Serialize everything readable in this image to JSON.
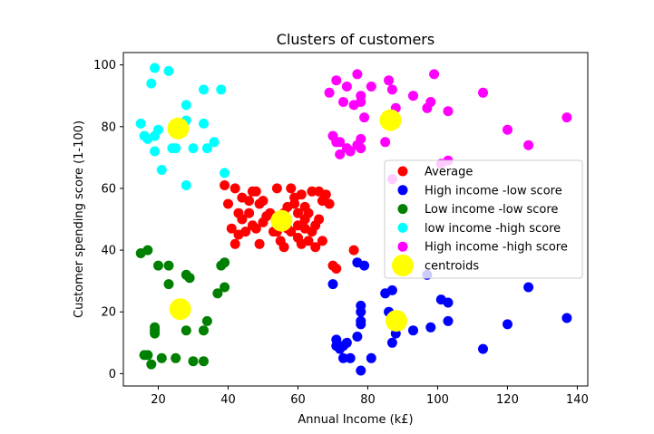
{
  "chart_data": {
    "type": "scatter",
    "title": "Clusters of customers",
    "xlabel": "Annual Income (k£)",
    "ylabel": "Customer spending score (1-100)",
    "xlim": [
      10,
      143
    ],
    "ylim": [
      -4,
      104
    ],
    "xticks": [
      20,
      40,
      60,
      80,
      100,
      120,
      140
    ],
    "yticks": [
      0,
      20,
      40,
      60,
      80,
      100
    ],
    "legend_position": "center-right",
    "series": [
      {
        "name": "Average",
        "color": "#ff0000",
        "marker": "point",
        "points": [
          [
            39,
            61
          ],
          [
            40,
            55
          ],
          [
            41,
            47
          ],
          [
            42,
            60
          ],
          [
            42,
            42
          ],
          [
            43,
            52
          ],
          [
            43,
            45
          ],
          [
            44,
            57
          ],
          [
            44,
            50
          ],
          [
            45,
            46
          ],
          [
            46,
            52
          ],
          [
            46,
            56
          ],
          [
            47,
            59
          ],
          [
            47,
            48
          ],
          [
            48,
            59
          ],
          [
            48,
            47
          ],
          [
            49,
            42
          ],
          [
            49,
            55
          ],
          [
            50,
            49
          ],
          [
            50,
            56
          ],
          [
            51,
            51
          ],
          [
            52,
            52
          ],
          [
            53,
            46
          ],
          [
            54,
            60
          ],
          [
            54,
            50
          ],
          [
            54,
            46
          ],
          [
            55,
            43
          ],
          [
            56,
            52
          ],
          [
            56,
            41
          ],
          [
            57,
            54
          ],
          [
            57,
            47
          ],
          [
            58,
            60
          ],
          [
            58,
            46
          ],
          [
            59,
            57
          ],
          [
            59,
            55
          ],
          [
            60,
            48
          ],
          [
            60,
            44
          ],
          [
            60,
            52
          ],
          [
            61,
            58
          ],
          [
            61,
            42
          ],
          [
            62,
            50
          ],
          [
            62,
            54
          ],
          [
            62,
            47
          ],
          [
            63,
            43
          ],
          [
            63,
            52
          ],
          [
            64,
            59
          ],
          [
            64,
            46
          ],
          [
            65,
            48
          ],
          [
            65,
            41
          ],
          [
            66,
            59
          ],
          [
            66,
            50
          ],
          [
            67,
            56
          ],
          [
            67,
            43
          ],
          [
            68,
            58
          ],
          [
            69,
            55
          ],
          [
            70,
            35
          ],
          [
            71,
            34
          ],
          [
            76,
            40
          ]
        ]
      },
      {
        "name": "High income -low score",
        "color": "#0000ff",
        "marker": "point",
        "points": [
          [
            70,
            29
          ],
          [
            71,
            11
          ],
          [
            71,
            9
          ],
          [
            72,
            8
          ],
          [
            73,
            5
          ],
          [
            73,
            9
          ],
          [
            74,
            10
          ],
          [
            75,
            5
          ],
          [
            77,
            36
          ],
          [
            77,
            12
          ],
          [
            78,
            22
          ],
          [
            78,
            20
          ],
          [
            78,
            17
          ],
          [
            78,
            16
          ],
          [
            78,
            1
          ],
          [
            79,
            35
          ],
          [
            81,
            5
          ],
          [
            85,
            26
          ],
          [
            86,
            20
          ],
          [
            87,
            27
          ],
          [
            87,
            10
          ],
          [
            88,
            13
          ],
          [
            88,
            15
          ],
          [
            93,
            14
          ],
          [
            97,
            32
          ],
          [
            98,
            15
          ],
          [
            101,
            24
          ],
          [
            103,
            17
          ],
          [
            103,
            23
          ],
          [
            113,
            8
          ],
          [
            120,
            16
          ],
          [
            126,
            28
          ],
          [
            137,
            18
          ]
        ]
      },
      {
        "name": "Low income -low score",
        "color": "#008000",
        "marker": "point",
        "points": [
          [
            15,
            39
          ],
          [
            16,
            6
          ],
          [
            17,
            40
          ],
          [
            17,
            6
          ],
          [
            18,
            3
          ],
          [
            19,
            14
          ],
          [
            19,
            15
          ],
          [
            19,
            13
          ],
          [
            20,
            35
          ],
          [
            21,
            5
          ],
          [
            23,
            29
          ],
          [
            23,
            35
          ],
          [
            25,
            5
          ],
          [
            28,
            14
          ],
          [
            28,
            32
          ],
          [
            29,
            31
          ],
          [
            30,
            4
          ],
          [
            33,
            4
          ],
          [
            33,
            14
          ],
          [
            34,
            17
          ],
          [
            37,
            26
          ],
          [
            38,
            35
          ],
          [
            39,
            36
          ],
          [
            39,
            28
          ]
        ]
      },
      {
        "name": "low income -high score",
        "color": "#00ffff",
        "marker": "point",
        "points": [
          [
            15,
            81
          ],
          [
            16,
            77
          ],
          [
            17,
            76
          ],
          [
            18,
            94
          ],
          [
            19,
            72
          ],
          [
            19,
            99
          ],
          [
            19,
            77
          ],
          [
            20,
            79
          ],
          [
            21,
            66
          ],
          [
            23,
            98
          ],
          [
            24,
            73
          ],
          [
            25,
            73
          ],
          [
            27,
            80
          ],
          [
            28,
            82
          ],
          [
            28,
            61
          ],
          [
            28,
            87
          ],
          [
            30,
            73
          ],
          [
            33,
            92
          ],
          [
            33,
            81
          ],
          [
            34,
            73
          ],
          [
            36,
            75
          ],
          [
            38,
            92
          ],
          [
            39,
            65
          ]
        ]
      },
      {
        "name": "High income -high score",
        "color": "#ff00ff",
        "marker": "point",
        "points": [
          [
            69,
            91
          ],
          [
            70,
            77
          ],
          [
            71,
            75
          ],
          [
            71,
            95
          ],
          [
            72,
            71
          ],
          [
            72,
            75
          ],
          [
            73,
            88
          ],
          [
            74,
            73
          ],
          [
            74,
            93
          ],
          [
            75,
            72
          ],
          [
            76,
            87
          ],
          [
            77,
            97
          ],
          [
            77,
            74
          ],
          [
            78,
            90
          ],
          [
            78,
            73
          ],
          [
            78,
            76
          ],
          [
            78,
            88
          ],
          [
            79,
            83
          ],
          [
            81,
            93
          ],
          [
            85,
            75
          ],
          [
            86,
            95
          ],
          [
            87,
            63
          ],
          [
            87,
            92
          ],
          [
            88,
            86
          ],
          [
            93,
            90
          ],
          [
            97,
            86
          ],
          [
            98,
            88
          ],
          [
            99,
            97
          ],
          [
            101,
            68
          ],
          [
            103,
            85
          ],
          [
            103,
            69
          ],
          [
            113,
            91
          ],
          [
            120,
            79
          ],
          [
            126,
            74
          ],
          [
            137,
            83
          ]
        ]
      },
      {
        "name": "centroids",
        "color": "#ffff00",
        "marker": "large",
        "points": [
          [
            25.7,
            79.4
          ],
          [
            55.3,
            49.5
          ],
          [
            86.5,
            82.1
          ],
          [
            88.2,
            17.1
          ],
          [
            26.3,
            20.9
          ]
        ]
      }
    ]
  }
}
